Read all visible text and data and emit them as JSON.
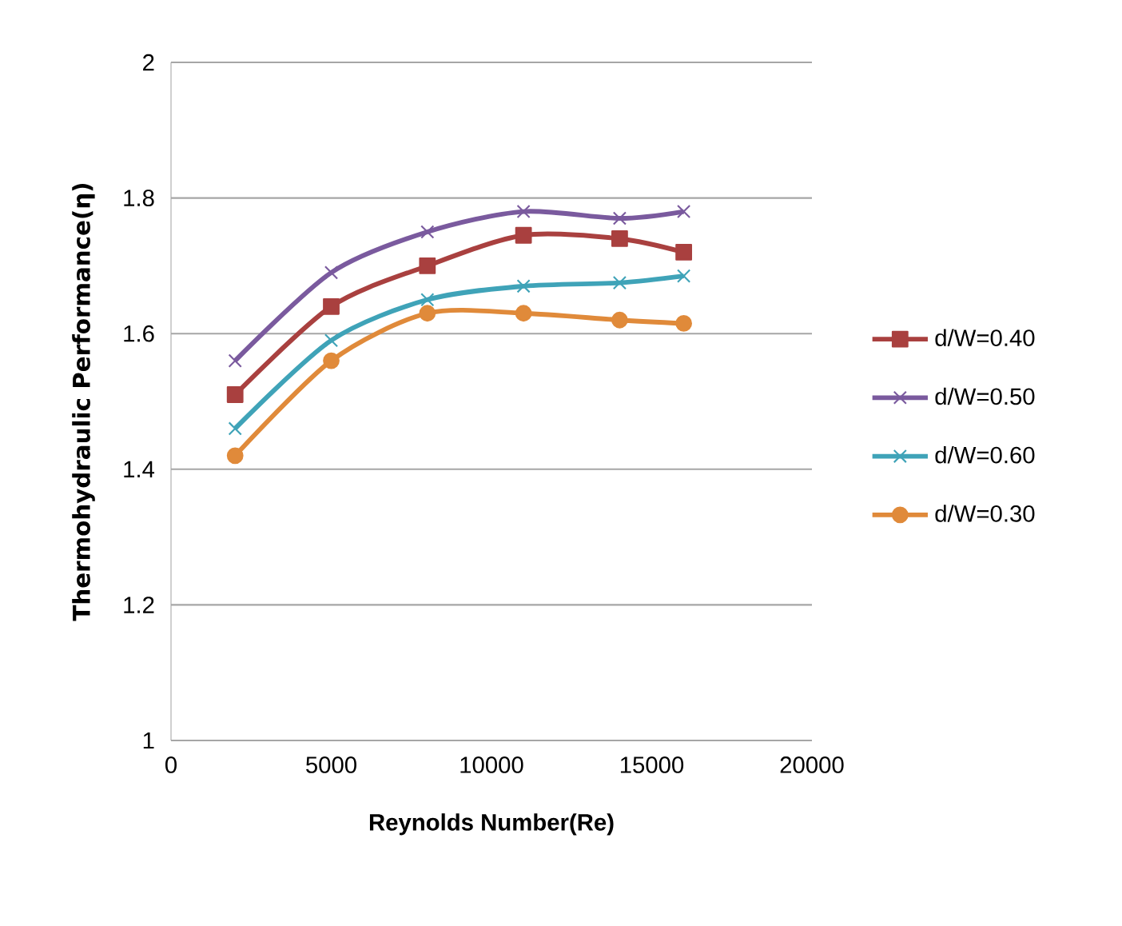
{
  "chart_data": {
    "type": "line",
    "xlabel": "Reynolds Number(Re)",
    "ylabel": "Thermohydraulic Performance(η)",
    "x": [
      2000,
      5000,
      8000,
      11000,
      14000,
      16000
    ],
    "series": [
      {
        "name": "d/W=0.40",
        "color": "#a9403f",
        "marker": "square",
        "values": [
          1.51,
          1.64,
          1.7,
          1.745,
          1.74,
          1.72
        ]
      },
      {
        "name": "d/W=0.50",
        "color": "#7a5a9e",
        "marker": "cross",
        "values": [
          1.56,
          1.69,
          1.75,
          1.78,
          1.77,
          1.78
        ]
      },
      {
        "name": "d/W=0.60",
        "color": "#3fa3b8",
        "marker": "cross",
        "values": [
          1.46,
          1.59,
          1.65,
          1.67,
          1.675,
          1.685
        ]
      },
      {
        "name": "d/W=0.30",
        "color": "#e08a3a",
        "marker": "circle",
        "values": [
          1.42,
          1.56,
          1.63,
          1.63,
          1.62,
          1.615
        ]
      }
    ],
    "xlim": [
      0,
      20000
    ],
    "xticks": [
      0,
      5000,
      10000,
      15000,
      20000
    ],
    "ylim": [
      1,
      2
    ],
    "yticks": [
      1,
      1.2,
      1.4,
      1.6,
      1.8,
      2
    ],
    "grid": "y",
    "legend": "right"
  }
}
